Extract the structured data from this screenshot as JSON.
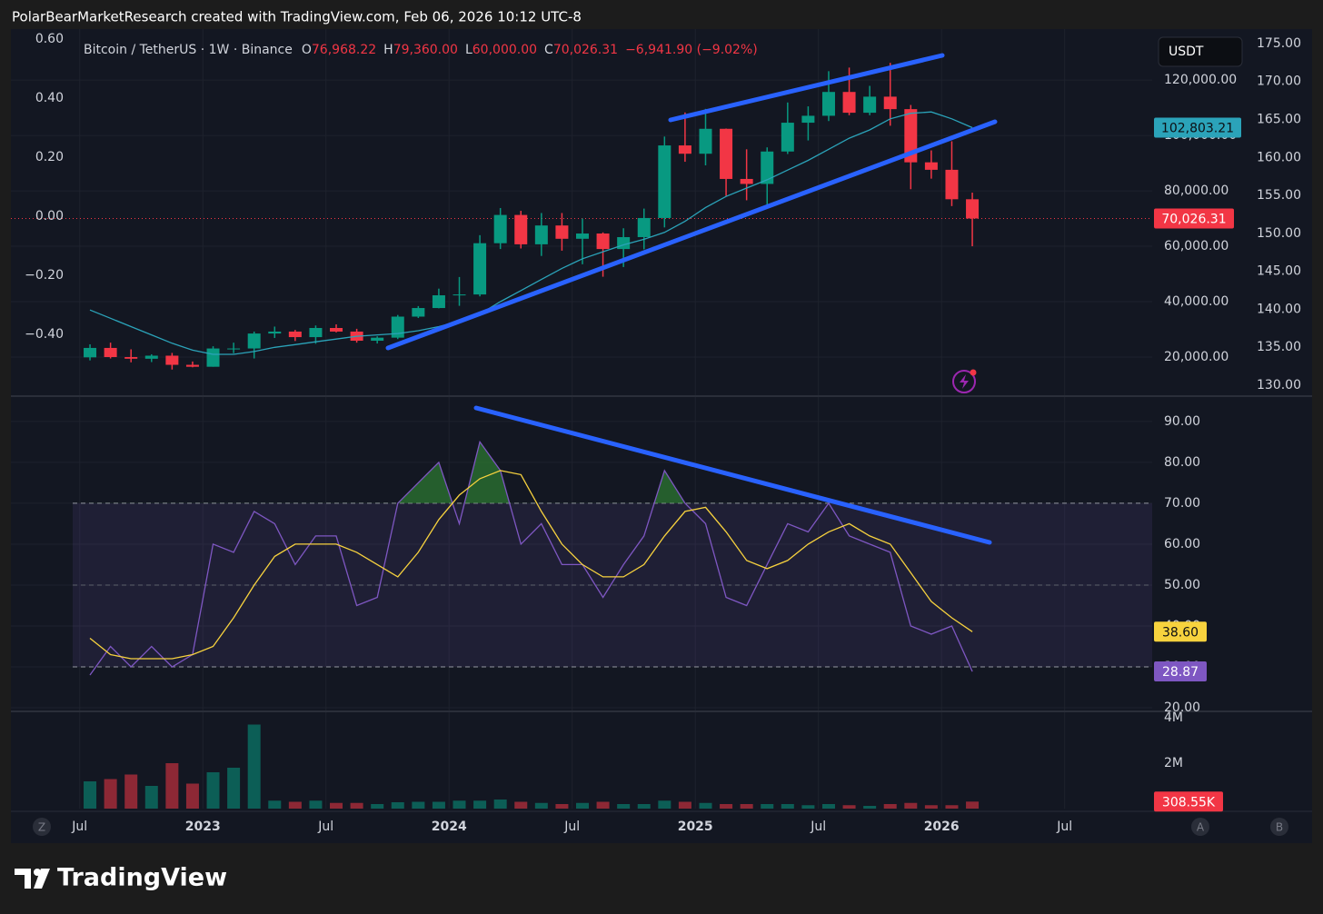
{
  "header": {
    "credit": "PolarBearMarketResearch created with TradingView.com, Feb 06, 2026 10:12 UTC-8"
  },
  "toolbar": {
    "currency": "USDT",
    "left_button": "Z",
    "right_buttons": [
      "A",
      "B"
    ]
  },
  "footer": {
    "brand": "TradingView"
  },
  "chart_data": [
    {
      "type": "candlestick",
      "title": "Bitcoin / TetherUS · 1W · Binance",
      "readout": [
        {
          "prefix": "O",
          "value": "76,968.22"
        },
        {
          "prefix": "H",
          "value": "79,360.00"
        },
        {
          "prefix": "L",
          "value": "60,000.00"
        },
        {
          "prefix": "C",
          "value": "70,026.31"
        }
      ],
      "change": "−6,941.90 (−9.02%)",
      "x": [
        "2022-07",
        "2022-08",
        "2022-09",
        "2022-10",
        "2022-11",
        "2022-12",
        "2023-01",
        "2023-02",
        "2023-03",
        "2023-04",
        "2023-05",
        "2023-06",
        "2023-07",
        "2023-08",
        "2023-09",
        "2023-10",
        "2023-11",
        "2023-12",
        "2024-01",
        "2024-02",
        "2024-03",
        "2024-04",
        "2024-05",
        "2024-06",
        "2024-07",
        "2024-08",
        "2024-09",
        "2024-10",
        "2024-11",
        "2024-12",
        "2025-01",
        "2025-02",
        "2025-03",
        "2025-04",
        "2025-05",
        "2025-06",
        "2025-07",
        "2025-08",
        "2025-09",
        "2025-10",
        "2025-11",
        "2025-12",
        "2026-01",
        "2026-02"
      ],
      "xlim": [
        "2022-04",
        "2026-11"
      ],
      "xticks": [
        {
          "value": "2022-07",
          "label": "Jul"
        },
        {
          "value": "2023-01",
          "label": "2023"
        },
        {
          "value": "2023-07",
          "label": "Jul"
        },
        {
          "value": "2024-01",
          "label": "2024"
        },
        {
          "value": "2024-07",
          "label": "Jul"
        },
        {
          "value": "2025-01",
          "label": "2025"
        },
        {
          "value": "2025-07",
          "label": "Jul"
        },
        {
          "value": "2026-01",
          "label": "2026"
        },
        {
          "value": "2026-07",
          "label": "Jul"
        }
      ],
      "open": [
        19900,
        23300,
        20000,
        19400,
        20500,
        17200,
        16500,
        23100,
        23100,
        28500,
        29200,
        27200,
        30500,
        29200,
        25900,
        27000,
        34600,
        37700,
        42300,
        42600,
        61100,
        71300,
        60700,
        67500,
        62700,
        64600,
        59000,
        63300,
        70200,
        96400,
        93400,
        102400,
        84300,
        82500,
        94200,
        104600,
        107100,
        115700,
        108200,
        114000,
        109500,
        90300,
        87600,
        76968.22
      ],
      "high": [
        24600,
        25200,
        22800,
        21000,
        21500,
        18400,
        23900,
        25200,
        29200,
        31000,
        29800,
        31400,
        31800,
        30200,
        27500,
        35200,
        38400,
        44700,
        48900,
        64000,
        73800,
        72800,
        72000,
        72000,
        70000,
        65000,
        66500,
        73600,
        99600,
        108300,
        109600,
        102500,
        95000,
        95700,
        111900,
        110500,
        123200,
        124500,
        117900,
        126200,
        111000,
        94600,
        97900,
        79360
      ],
      "low": [
        18800,
        19500,
        18100,
        18200,
        15500,
        16300,
        16500,
        21400,
        19500,
        26900,
        25800,
        24800,
        28900,
        25200,
        24900,
        26500,
        34100,
        37600,
        38500,
        41900,
        59000,
        59200,
        56500,
        58400,
        53500,
        49000,
        52500,
        58900,
        66800,
        90500,
        89200,
        78200,
        76600,
        74400,
        93300,
        98200,
        105200,
        107300,
        107300,
        103500,
        80600,
        84400,
        74500,
        60000
      ],
      "close": [
        23300,
        20000,
        19400,
        20500,
        17200,
        16500,
        23100,
        23100,
        28500,
        29200,
        27200,
        30500,
        29200,
        25900,
        27000,
        34600,
        37700,
        42300,
        42600,
        61100,
        71300,
        60700,
        67500,
        62700,
        64600,
        59000,
        63300,
        70200,
        96400,
        93400,
        102400,
        84300,
        82500,
        94200,
        104600,
        107100,
        115700,
        108200,
        114000,
        109500,
        90300,
        87600,
        76968.22,
        70026.31
      ],
      "up_color": "#089981",
      "down_color": "#f23645",
      "close_label": "70,026.31",
      "series": [
        {
          "color": "#2ba3b9",
          "values": [
            37000,
            34000,
            31000,
            28000,
            25000,
            22500,
            21000,
            21000,
            22000,
            23500,
            24500,
            25500,
            26500,
            27500,
            28000,
            28500,
            29500,
            31000,
            33000,
            35500,
            40000,
            44000,
            48000,
            52000,
            55500,
            58000,
            60500,
            62500,
            65000,
            69000,
            74000,
            78000,
            81000,
            84000,
            87500,
            91000,
            95000,
            99000,
            102000,
            106000,
            108000,
            108500,
            106000,
            102803.21
          ],
          "last_label": "102,803.21"
        }
      ],
      "ylim": [
        5900,
        138400
      ],
      "yticks": [
        {
          "value": 20000,
          "label": "20,000.00"
        },
        {
          "value": 40000,
          "label": "40,000.00"
        },
        {
          "value": 60000,
          "label": "60,000.00"
        },
        {
          "value": 80000,
          "label": "80,000.00"
        },
        {
          "value": 100000,
          "label": "100,000.00"
        },
        {
          "value": 120000,
          "label": "120,000.00"
        }
      ],
      "left_axis": {
        "ylim": [
          -0.609,
          0.634
        ],
        "yticks": [
          {
            "value": 0.6,
            "label": "0.60"
          },
          {
            "value": 0.4,
            "label": "0.40"
          },
          {
            "value": 0.2,
            "label": "0.20"
          },
          {
            "value": 0,
            "label": "0.00"
          },
          {
            "value": -0.2,
            "label": "−0.20"
          },
          {
            "value": -0.4,
            "label": "−0.40"
          }
        ]
      },
      "inner_axis": {
        "ylim": [
          128.56,
          176.91
        ],
        "yticks": [
          {
            "value": 175,
            "label": "175.00"
          },
          {
            "value": 170,
            "label": "170.00"
          },
          {
            "value": 165,
            "label": "165.00"
          },
          {
            "value": 160,
            "label": "160.00"
          },
          {
            "value": 155,
            "label": "155.00"
          },
          {
            "value": 150,
            "label": "150.00"
          },
          {
            "value": 145,
            "label": "145.00"
          },
          {
            "value": 140,
            "label": "140.00"
          },
          {
            "value": 135,
            "label": "135.00"
          },
          {
            "value": 130,
            "label": "130.00"
          }
        ]
      },
      "grid": true
    },
    {
      "type": "line",
      "series": [
        {
          "color": "#7e57c2",
          "values": [
            28,
            35,
            30,
            35,
            30,
            33,
            60,
            58,
            68,
            65,
            55,
            62,
            62,
            45,
            47,
            70,
            75,
            80,
            65,
            85,
            78,
            60,
            65,
            55,
            55,
            47,
            55,
            62,
            78,
            70,
            65,
            47,
            45,
            55,
            65,
            63,
            70,
            62,
            60,
            58,
            40,
            38,
            40,
            28.87
          ],
          "last_label": "28.87"
        },
        {
          "color": "#f7d23e",
          "values": [
            37,
            33,
            32,
            32,
            32,
            33,
            35,
            42,
            50,
            57,
            60,
            60,
            60,
            58,
            55,
            52,
            58,
            66,
            72,
            76,
            78,
            77,
            68,
            60,
            55,
            52,
            52,
            55,
            62,
            68,
            69,
            63,
            56,
            54,
            56,
            60,
            63,
            65,
            62,
            60,
            53,
            46,
            42,
            38.6
          ],
          "last_label": "38.60"
        }
      ],
      "ylim": [
        19.33,
        96.2
      ],
      "yticks": [
        {
          "value": 20,
          "label": "20.00"
        },
        {
          "value": 30,
          "label": "30.00"
        },
        {
          "value": 40,
          "label": "40.00"
        },
        {
          "value": 50,
          "label": "50.00"
        },
        {
          "value": 60,
          "label": "60.00"
        },
        {
          "value": 70,
          "label": "70.00"
        },
        {
          "value": 80,
          "label": "80.00"
        },
        {
          "value": 90,
          "label": "90.00"
        }
      ],
      "bands": [
        30,
        70
      ],
      "midline": 50,
      "overbought_fill": "#2e7d32"
    },
    {
      "type": "bar",
      "values": [
        1200000,
        1300000,
        1500000,
        1000000,
        2000000,
        1100000,
        1600000,
        1800000,
        3700000,
        350000,
        300000,
        350000,
        250000,
        250000,
        200000,
        280000,
        300000,
        300000,
        350000,
        350000,
        400000,
        300000,
        250000,
        200000,
        250000,
        300000,
        200000,
        200000,
        350000,
        300000,
        250000,
        200000,
        200000,
        200000,
        200000,
        150000,
        200000,
        150000,
        120000,
        200000,
        250000,
        150000,
        150000,
        308550
      ],
      "last_label": "308.55K",
      "ylim": [
        0,
        4200000
      ],
      "yticks": [
        {
          "value": 2000000,
          "label": "2M"
        },
        {
          "value": 4000000,
          "label": "4M"
        }
      ]
    }
  ]
}
